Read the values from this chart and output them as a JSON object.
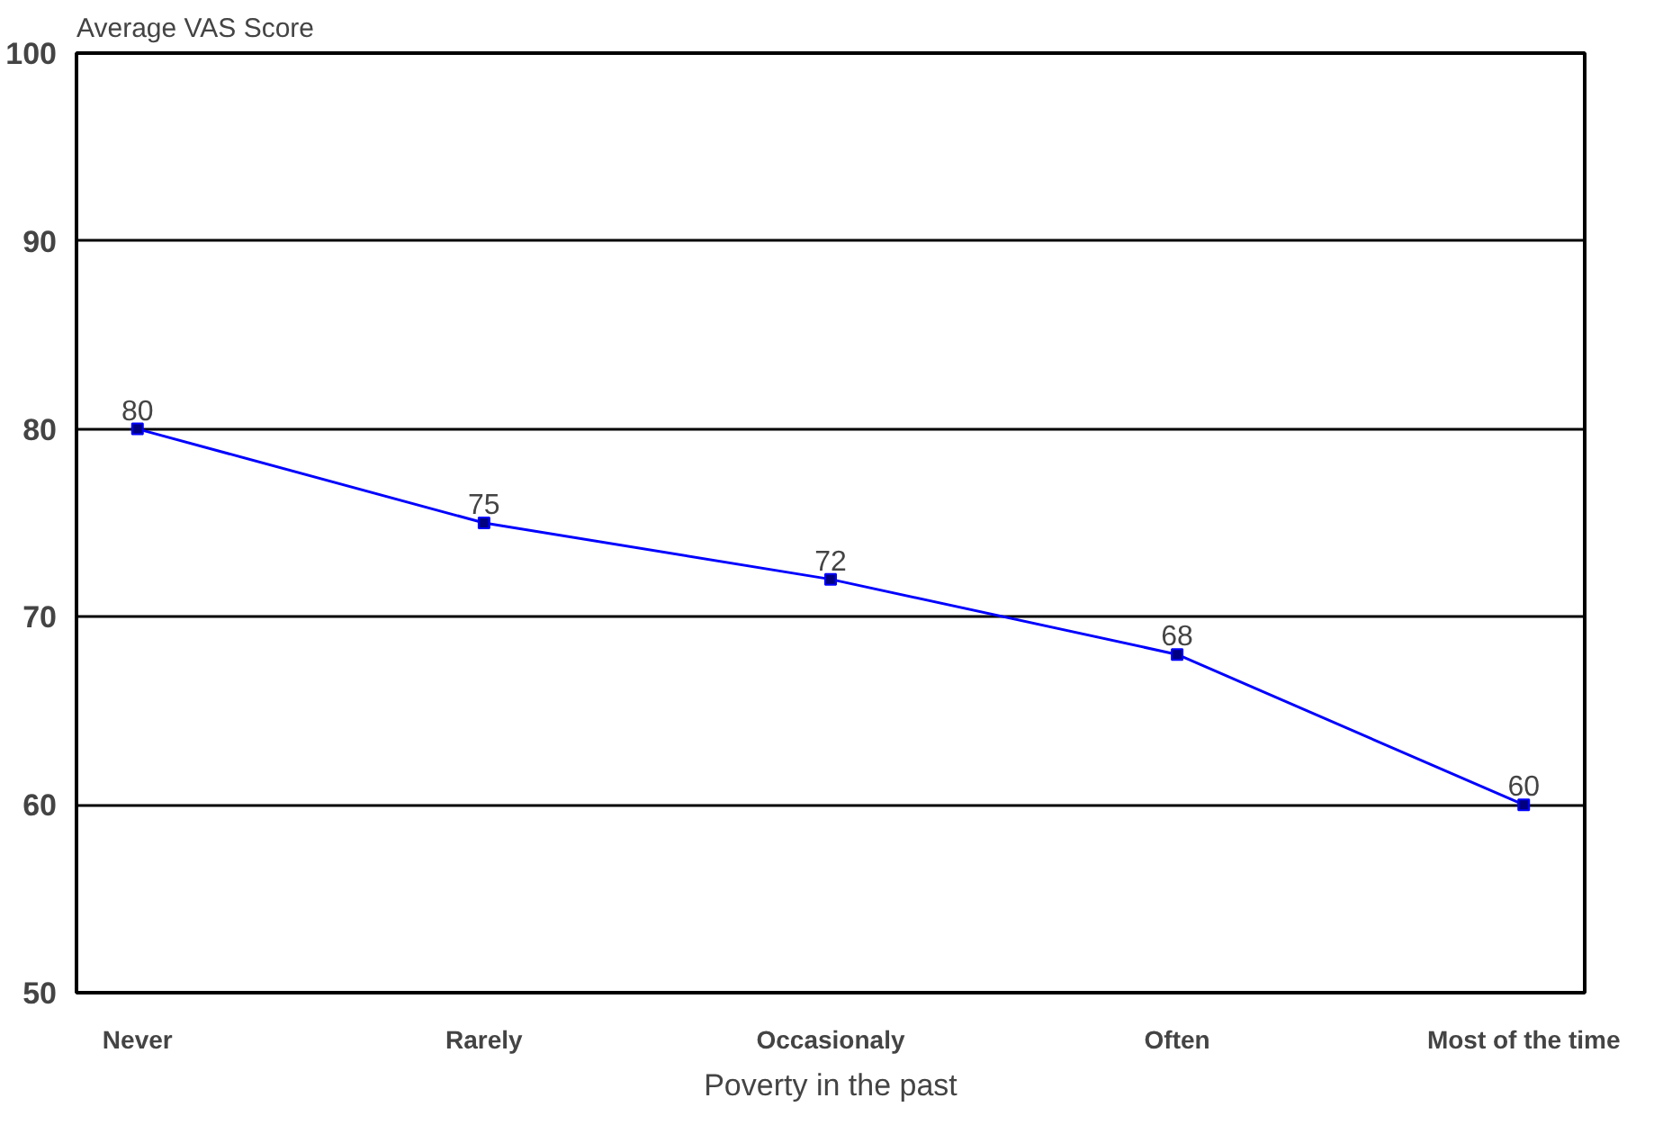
{
  "chart_data": {
    "type": "line",
    "ylabel": "Average VAS Score",
    "xlabel": "Poverty in the past",
    "categories": [
      "Never",
      "Rarely",
      "Occasionaly",
      "Often",
      "Most of the time"
    ],
    "series": [
      {
        "color": "#0000ff",
        "values": [
          80,
          75,
          72,
          68,
          60
        ]
      }
    ],
    "ylim": [
      50,
      100
    ],
    "yticks": [
      50,
      60,
      70,
      80,
      90,
      100
    ],
    "grid": "y",
    "marker": "square",
    "line_style": "solid",
    "data_labels": true
  }
}
